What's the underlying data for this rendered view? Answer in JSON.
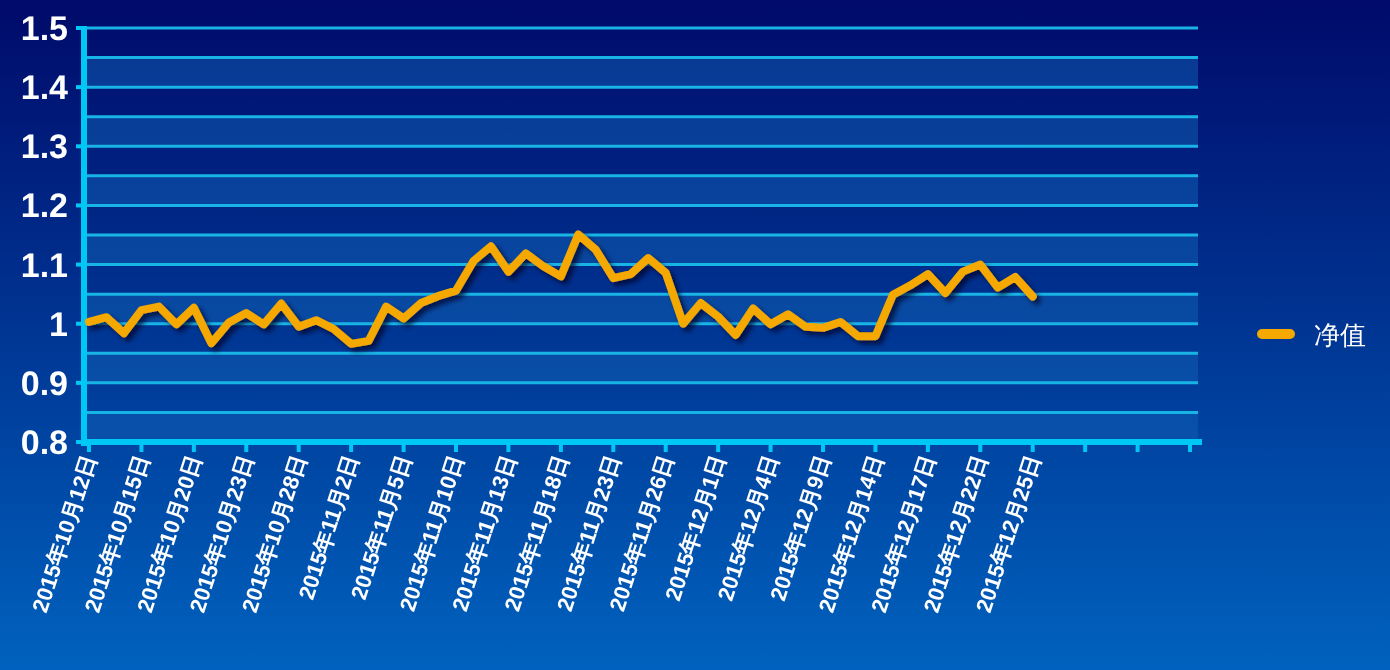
{
  "chart_data": {
    "type": "line",
    "categories": [
      "2015年10月12日",
      null,
      null,
      "2015年10月15日",
      null,
      null,
      "2015年10月20日",
      null,
      null,
      "2015年10月23日",
      null,
      null,
      "2015年10月28日",
      null,
      null,
      "2015年11月2日",
      null,
      null,
      "2015年11月5日",
      null,
      null,
      "2015年11月10日",
      null,
      null,
      "2015年11月13日",
      null,
      null,
      "2015年11月18日",
      null,
      null,
      "2015年11月23日",
      null,
      null,
      "2015年11月26日",
      null,
      null,
      "2015年12月1日",
      null,
      null,
      "2015年12月4日",
      null,
      null,
      "2015年12月9日",
      null,
      null,
      "2015年12月14日",
      null,
      null,
      "2015年12月17日",
      null,
      null,
      "2015年12月22日",
      null,
      null,
      "2015年12月25日",
      null,
      null,
      null,
      null,
      null,
      null,
      null,
      null,
      null
    ],
    "series": [
      {
        "name": "净值",
        "color": "#f5a800",
        "values": [
          1.003,
          1.011,
          0.984,
          1.023,
          1.029,
          0.999,
          1.027,
          0.967,
          1.002,
          1.018,
          0.999,
          1.034,
          0.995,
          1.006,
          0.991,
          0.966,
          0.971,
          1.029,
          1.009,
          1.035,
          1.047,
          1.056,
          1.106,
          1.131,
          1.088,
          1.119,
          1.097,
          1.08,
          1.151,
          1.125,
          1.077,
          1.084,
          1.111,
          1.086,
          1.0,
          1.035,
          1.012,
          0.981,
          1.026,
          0.999,
          1.016,
          0.995,
          0.993,
          1.003,
          0.979,
          0.979,
          1.049,
          1.065,
          1.084,
          1.052,
          1.088,
          1.1,
          1.061,
          1.079,
          1.046,
          null,
          null,
          null,
          null,
          null,
          null,
          null,
          null,
          null
        ]
      }
    ],
    "ylim": [
      0.8,
      1.5
    ],
    "yticks": [
      0.8,
      {
        "value": 0.85,
        "label": null
      },
      0.9,
      {
        "value": 0.95,
        "label": null
      },
      1,
      {
        "value": 1.05,
        "label": null
      },
      1.1,
      {
        "value": 1.15,
        "label": null
      },
      1.2,
      {
        "value": 1.25,
        "label": null
      },
      1.3,
      {
        "value": 1.35,
        "label": null
      },
      1.4,
      {
        "value": 1.45,
        "label": null
      },
      1.5
    ],
    "grid": "y",
    "legend": "right",
    "line_style": "solid",
    "marker": "none"
  }
}
